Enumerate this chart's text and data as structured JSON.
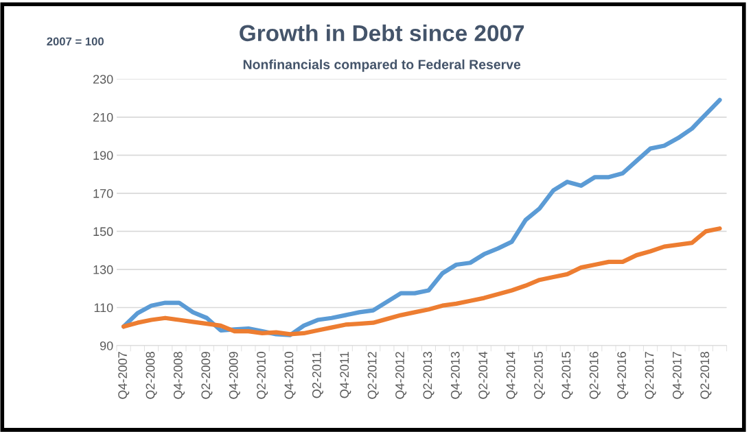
{
  "chart_data": {
    "type": "line",
    "title": "Growth in Debt since 2007",
    "subtitle": "Nonfinancials compared to Federal Reserve",
    "ylabel": "2007 = 100",
    "categories": [
      "Q4-2007",
      null,
      "Q2-2008",
      null,
      "Q4-2008",
      null,
      "Q2-2009",
      null,
      "Q4-2009",
      null,
      "Q2-2010",
      null,
      "Q4-2010",
      null,
      "Q2-2011",
      null,
      "Q4-2011",
      null,
      "Q2-2012",
      null,
      "Q4-2012",
      null,
      "Q2-2013",
      null,
      "Q4-2013",
      null,
      "Q2-2014",
      null,
      "Q4-2014",
      null,
      "Q2-2015",
      null,
      "Q4-2015",
      null,
      "Q2-2016",
      null,
      "Q4-2016",
      null,
      "Q2-2017",
      null,
      "Q4-2017",
      null,
      "Q2-2018",
      null
    ],
    "series": [
      {
        "color": "#5b9bd5",
        "values": [
          100,
          107,
          111,
          112.5,
          112.5,
          107.5,
          104.5,
          98,
          98.5,
          99,
          97.5,
          96,
          95.5,
          100.5,
          103.5,
          104.5,
          106,
          107.5,
          108.5,
          113,
          117.5,
          117.5,
          119,
          128,
          132.5,
          133.5,
          138,
          141,
          144.5,
          156,
          162,
          171.5,
          176,
          174,
          178.5,
          178.5,
          180.5,
          187,
          193.5,
          195,
          199,
          204,
          211.5,
          219
        ]
      },
      {
        "color": "#ed7d31",
        "values": [
          100,
          102,
          103.5,
          104.5,
          103.5,
          102.5,
          101.5,
          100.5,
          97.5,
          97.5,
          96.5,
          97,
          96,
          96.5,
          98,
          99.5,
          101,
          101.5,
          102,
          104,
          106,
          107.5,
          109,
          111,
          112,
          113.5,
          115,
          117,
          119,
          121.5,
          124.5,
          126,
          127.5,
          131,
          132.5,
          134,
          134,
          137.5,
          139.5,
          142,
          143,
          144,
          150,
          151.5
        ]
      }
    ],
    "ylim": [
      90,
      230
    ],
    "yticks": [
      90,
      110,
      130,
      150,
      170,
      190,
      210,
      230
    ],
    "grid": "y",
    "legend": false,
    "line_style": "solid",
    "marker": "none"
  }
}
